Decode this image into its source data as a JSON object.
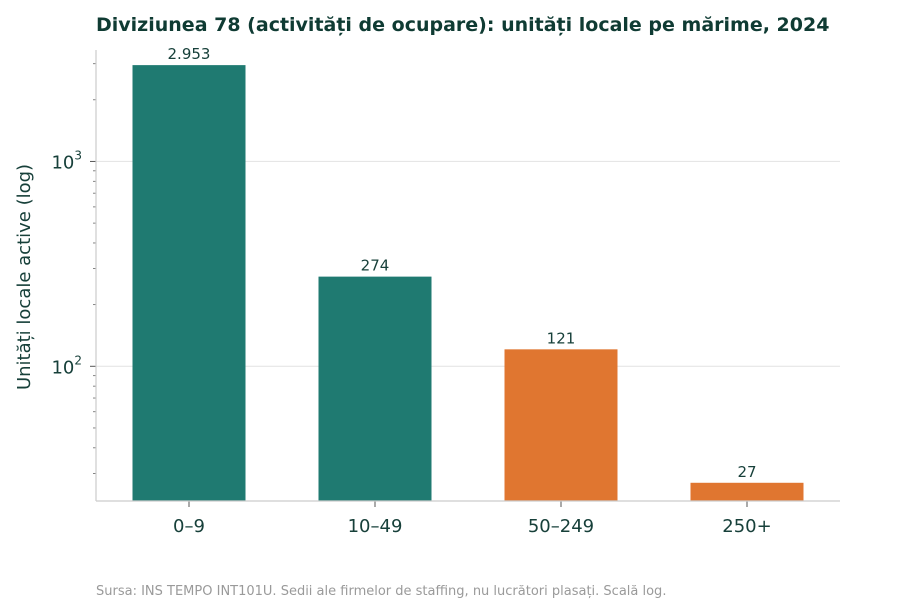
{
  "chart_data": {
    "type": "bar",
    "title": "Diviziunea 78 (activități de ocupare): unități locale pe mărime, 2024",
    "ylabel": "Unități locale active (log)",
    "xlabel": "",
    "yscale": "log",
    "ylim": [
      22,
      3500
    ],
    "grid": true,
    "categories": [
      "0–9",
      "10–49",
      "50–249",
      "250+"
    ],
    "values": [
      2953,
      274,
      121,
      27
    ],
    "value_labels": [
      "2.953",
      "274",
      "121",
      "27"
    ],
    "bar_colors": [
      "#1f7a71",
      "#1f7a71",
      "#e07630",
      "#e07630"
    ],
    "y_ticks": [
      {
        "value": 100,
        "base": "10",
        "exp": "2"
      },
      {
        "value": 1000,
        "base": "10",
        "exp": "3"
      }
    ],
    "source": "Sursa: INS TEMPO INT101U. Sedii ale firmelor de staffing, nu lucrători plasați. Scală log."
  },
  "colors": {
    "title": "#0f3b33",
    "text": "#17403a",
    "grid": "#e6e6e6",
    "axis": "#cccccc",
    "source": "#9a9a9a"
  }
}
